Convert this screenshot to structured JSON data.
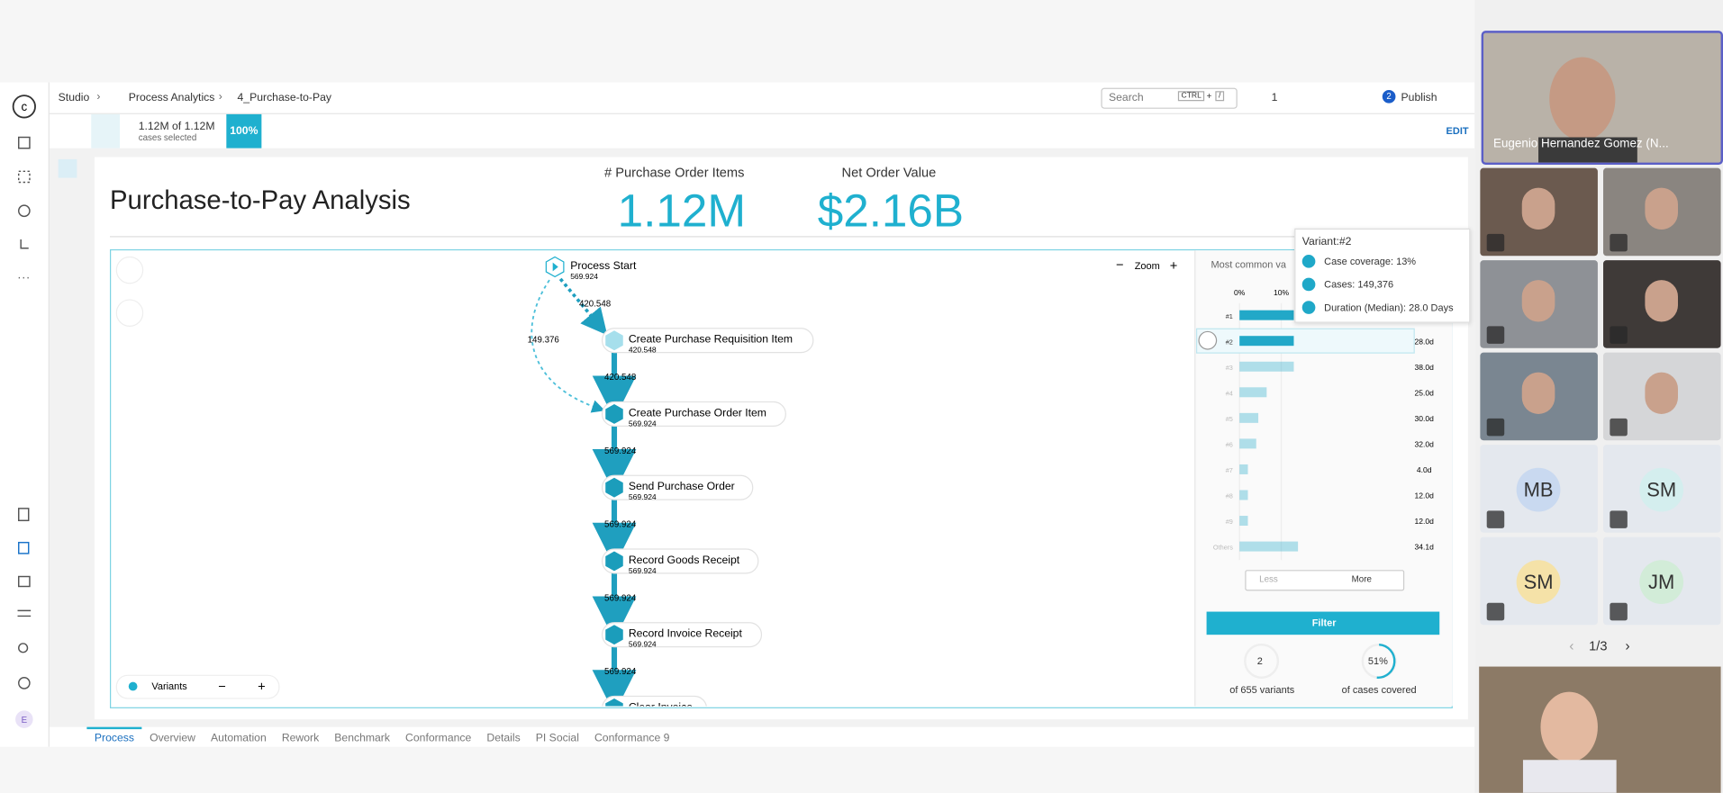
{
  "breadcrumb": [
    "Studio",
    "Process Analytics",
    "4_Purchase-to-Pay"
  ],
  "header": {
    "search": "Search",
    "shortcut_key": "CTRL",
    "shortcut_plus": "+",
    "shortcut_slash": "/",
    "data_count": "1",
    "publish_count": "2",
    "publish": "Publish"
  },
  "toolbar": {
    "cases": "1.12M of 1.12M",
    "cases_caption": "cases selected",
    "percent": "100%",
    "edit": "EDIT"
  },
  "dashboard": {
    "title": "Purchase-to-Pay Analysis",
    "kpis": [
      {
        "label": "# Purchase Order Items",
        "value": "1.12M"
      },
      {
        "label": "Net Order Value",
        "value": "$2.16B"
      }
    ]
  },
  "process_map": {
    "start": {
      "label": "Process Start",
      "count": "569.924"
    },
    "nodes": [
      {
        "label": "Create Purchase Requisition Item",
        "count": "420.548"
      },
      {
        "label": "Create Purchase Order Item",
        "count": "569.924"
      },
      {
        "label": "Send Purchase Order",
        "count": "569.924"
      },
      {
        "label": "Record Goods Receipt",
        "count": "569.924"
      },
      {
        "label": "Record Invoice Receipt",
        "count": "569.924"
      },
      {
        "label": "Clear Invoice"
      }
    ],
    "start_edge": "420.548",
    "bypass_edge": "149.376",
    "edges": [
      "420.548",
      "569.924",
      "569.924",
      "569.924",
      "569.924"
    ],
    "zoom": "Zoom",
    "variants_label": "Variants"
  },
  "variant_chart": {
    "type": "bar",
    "title": "Most common va",
    "xticks": [
      {
        "value": 0,
        "label": "0%"
      },
      {
        "value": 10,
        "label": "10%"
      }
    ],
    "categories": [
      "#1",
      "#2",
      "#3",
      "#4",
      "#5",
      "#6",
      "#7",
      "#8",
      "#9",
      "Others"
    ],
    "values": [
      13,
      13,
      13,
      6.5,
      4.5,
      4,
      2,
      2,
      2,
      14
    ],
    "durations": [
      null,
      "28.0d",
      "38.0d",
      "25.0d",
      "30.0d",
      "32.0d",
      "4.0d",
      "12.0d",
      "12.0d",
      "34.1d"
    ],
    "color": "#22a8c8"
  },
  "tooltip": {
    "title": "Variant:#2",
    "lines": [
      "Case coverage: 13%",
      "Cases: 149,376",
      "Duration (Median): 28.0 Days"
    ]
  },
  "buttons": {
    "less": "Less",
    "more": "More",
    "filter": "Filter"
  },
  "stats": [
    {
      "value": "2",
      "caption": "of 655 variants"
    },
    {
      "value": "51%",
      "caption": "of cases covered"
    }
  ],
  "tabs": [
    "Process",
    "Overview",
    "Automation",
    "Rework",
    "Benchmark",
    "Conformance",
    "Details",
    "PI Social",
    "Conformance 9"
  ],
  "call": {
    "speaker": "Eugenio Hernandez Gomez (N...",
    "initials": [
      "MB",
      "SM",
      "SM",
      "JM"
    ],
    "pager": "1/3"
  }
}
